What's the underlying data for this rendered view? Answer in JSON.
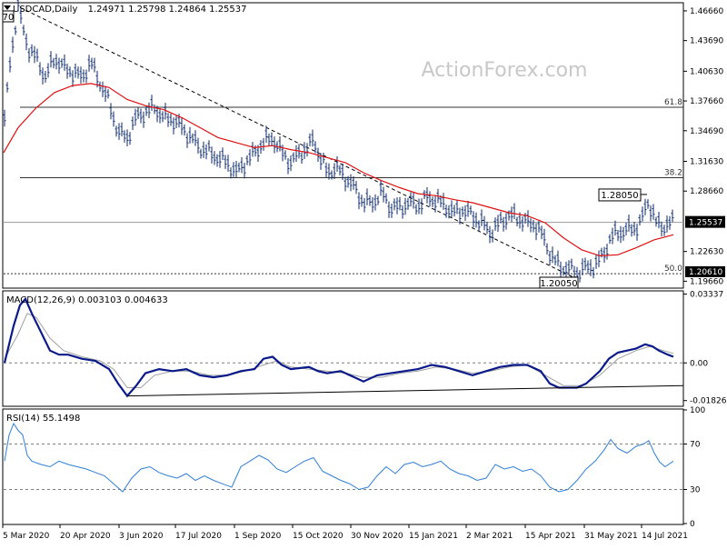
{
  "header": {
    "symbol": "USDCAD,Daily",
    "ohlc": "1.24971 1.25798 1.24864 1.25537"
  },
  "watermark": "ActionForex.com",
  "colors": {
    "price": "#0b2a6e",
    "ma": "#e01010",
    "macd": "#0a1a8a",
    "macd_signal": "#a0a0a0",
    "rsi": "#2f7fd6",
    "grid": "#7f7f7f",
    "fib": "#333333"
  },
  "chart_data": [
    {
      "type": "candlestick",
      "panel": "price",
      "ylim": [
        1.1906,
        1.4738
      ],
      "y_ticks": [
        1.4666,
        1.4369,
        1.4063,
        1.3766,
        1.3469,
        1.3163,
        1.2866,
        1.25537,
        1.2263,
        1.2061,
        1.1966
      ],
      "y_tick_labels": [
        "1.46660",
        "1.43690",
        "1.40630",
        "1.37660",
        "1.34690",
        "1.31630",
        "1.28660",
        "1.25537",
        "1.22630",
        "1.20610",
        "1.19660"
      ],
      "current_price": 1.25537,
      "marker_price": 1.2061,
      "x_labels": [
        "5 Mar 2020",
        "20 Apr 2020",
        "3 Jun 2020",
        "17 Jul 2020",
        "1 Sep 2020",
        "15 Oct 2020",
        "30 Nov 2020",
        "15 Jan 2021",
        "2 Mar 2021",
        "15 Apr 2021",
        "31 May 2021",
        "14 Jul 2021"
      ],
      "price_path": [
        [
          0,
          1.34
        ],
        [
          6,
          1.36
        ],
        [
          10,
          1.41
        ],
        [
          15,
          1.44
        ],
        [
          20,
          1.47
        ],
        [
          25,
          1.45
        ],
        [
          33,
          1.425
        ],
        [
          40,
          1.42
        ],
        [
          50,
          1.4
        ],
        [
          60,
          1.42
        ],
        [
          70,
          1.41
        ],
        [
          80,
          1.405
        ],
        [
          90,
          1.4
        ],
        [
          100,
          1.415
        ],
        [
          110,
          1.395
        ],
        [
          120,
          1.375
        ],
        [
          130,
          1.345
        ],
        [
          140,
          1.34
        ],
        [
          150,
          1.36
        ],
        [
          160,
          1.365
        ],
        [
          170,
          1.37
        ],
        [
          180,
          1.36
        ],
        [
          190,
          1.358
        ],
        [
          200,
          1.35
        ],
        [
          210,
          1.34
        ],
        [
          220,
          1.33
        ],
        [
          230,
          1.325
        ],
        [
          240,
          1.32
        ],
        [
          250,
          1.315
        ],
        [
          260,
          1.305
        ],
        [
          270,
          1.315
        ],
        [
          280,
          1.325
        ],
        [
          290,
          1.335
        ],
        [
          300,
          1.34
        ],
        [
          310,
          1.325
        ],
        [
          320,
          1.315
        ],
        [
          330,
          1.325
        ],
        [
          340,
          1.33
        ],
        [
          345,
          1.34
        ],
        [
          350,
          1.325
        ],
        [
          360,
          1.305
        ],
        [
          370,
          1.31
        ],
        [
          380,
          1.3
        ],
        [
          390,
          1.29
        ],
        [
          400,
          1.275
        ],
        [
          410,
          1.275
        ],
        [
          420,
          1.285
        ],
        [
          430,
          1.27
        ],
        [
          440,
          1.27
        ],
        [
          450,
          1.275
        ],
        [
          460,
          1.272
        ],
        [
          470,
          1.28
        ],
        [
          480,
          1.278
        ],
        [
          490,
          1.272
        ],
        [
          500,
          1.265
        ],
        [
          510,
          1.268
        ],
        [
          520,
          1.262
        ],
        [
          530,
          1.255
        ],
        [
          540,
          1.245
        ],
        [
          550,
          1.255
        ],
        [
          560,
          1.262
        ],
        [
          570,
          1.26
        ],
        [
          580,
          1.255
        ],
        [
          590,
          1.252
        ],
        [
          598,
          1.24
        ],
        [
          605,
          1.225
        ],
        [
          612,
          1.215
        ],
        [
          620,
          1.21
        ],
        [
          628,
          1.208
        ],
        [
          635,
          1.205
        ],
        [
          645,
          1.21
        ],
        [
          655,
          1.212
        ],
        [
          665,
          1.225
        ],
        [
          672,
          1.24
        ],
        [
          680,
          1.245
        ],
        [
          690,
          1.248
        ],
        [
          700,
          1.25
        ],
        [
          707,
          1.26
        ],
        [
          712,
          1.275
        ],
        [
          717,
          1.27
        ],
        [
          722,
          1.255
        ],
        [
          728,
          1.25
        ],
        [
          735,
          1.255
        ],
        [
          741,
          1.255
        ]
      ],
      "ma_path": [
        [
          4,
          1.325
        ],
        [
          20,
          1.35
        ],
        [
          40,
          1.37
        ],
        [
          60,
          1.385
        ],
        [
          80,
          1.392
        ],
        [
          100,
          1.394
        ],
        [
          120,
          1.39
        ],
        [
          140,
          1.378
        ],
        [
          160,
          1.372
        ],
        [
          180,
          1.368
        ],
        [
          200,
          1.36
        ],
        [
          220,
          1.35
        ],
        [
          240,
          1.34
        ],
        [
          260,
          1.335
        ],
        [
          280,
          1.33
        ],
        [
          300,
          1.332
        ],
        [
          320,
          1.328
        ],
        [
          340,
          1.325
        ],
        [
          360,
          1.32
        ],
        [
          380,
          1.315
        ],
        [
          400,
          1.305
        ],
        [
          420,
          1.297
        ],
        [
          440,
          1.29
        ],
        [
          460,
          1.284
        ],
        [
          480,
          1.282
        ],
        [
          500,
          1.278
        ],
        [
          520,
          1.275
        ],
        [
          540,
          1.27
        ],
        [
          560,
          1.265
        ],
        [
          580,
          1.262
        ],
        [
          600,
          1.255
        ],
        [
          620,
          1.24
        ],
        [
          640,
          1.228
        ],
        [
          660,
          1.222
        ],
        [
          680,
          1.223
        ],
        [
          700,
          1.23
        ],
        [
          720,
          1.238
        ],
        [
          741,
          1.243
        ]
      ]
    },
    {
      "type": "line",
      "panel": "macd",
      "label": "MACD(12,26,9) 0.003103 0.004633",
      "ylim": [
        -0.0206,
        0.0345
      ],
      "y_ticks": [
        0.03337,
        0.0,
        -0.018262
      ],
      "y_tick_labels": [
        "0.03337",
        "0.00",
        "-0.018262"
      ],
      "macd_path": [
        [
          5,
          0.0
        ],
        [
          15,
          0.018
        ],
        [
          22,
          0.028
        ],
        [
          28,
          0.031
        ],
        [
          35,
          0.024
        ],
        [
          45,
          0.015
        ],
        [
          55,
          0.006
        ],
        [
          65,
          0.004
        ],
        [
          75,
          0.004
        ],
        [
          90,
          0.002
        ],
        [
          105,
          0.001
        ],
        [
          120,
          -0.003
        ],
        [
          130,
          -0.01
        ],
        [
          140,
          -0.016
        ],
        [
          150,
          -0.011
        ],
        [
          160,
          -0.005
        ],
        [
          175,
          -0.003
        ],
        [
          190,
          -0.004
        ],
        [
          205,
          -0.003
        ],
        [
          220,
          -0.006
        ],
        [
          235,
          -0.007
        ],
        [
          250,
          -0.006
        ],
        [
          265,
          -0.004
        ],
        [
          280,
          -0.003
        ],
        [
          290,
          0.002
        ],
        [
          300,
          0.003
        ],
        [
          310,
          -0.001
        ],
        [
          320,
          -0.003
        ],
        [
          340,
          -0.002
        ],
        [
          350,
          -0.004
        ],
        [
          360,
          -0.005
        ],
        [
          375,
          -0.004
        ],
        [
          390,
          -0.007
        ],
        [
          400,
          -0.009
        ],
        [
          415,
          -0.006
        ],
        [
          430,
          -0.005
        ],
        [
          445,
          -0.004
        ],
        [
          460,
          -0.003
        ],
        [
          475,
          -0.001
        ],
        [
          490,
          -0.002
        ],
        [
          505,
          -0.004
        ],
        [
          520,
          -0.006
        ],
        [
          535,
          -0.004
        ],
        [
          550,
          -0.002
        ],
        [
          565,
          -0.001
        ],
        [
          580,
          -0.001
        ],
        [
          595,
          -0.004
        ],
        [
          605,
          -0.01
        ],
        [
          615,
          -0.012
        ],
        [
          625,
          -0.012
        ],
        [
          635,
          -0.012
        ],
        [
          645,
          -0.01
        ],
        [
          660,
          -0.004
        ],
        [
          670,
          0.002
        ],
        [
          680,
          0.005
        ],
        [
          690,
          0.006
        ],
        [
          700,
          0.007
        ],
        [
          710,
          0.009
        ],
        [
          718,
          0.008
        ],
        [
          725,
          0.006
        ],
        [
          735,
          0.004
        ],
        [
          741,
          0.003
        ]
      ],
      "signal_path": [
        [
          5,
          0.002
        ],
        [
          20,
          0.014
        ],
        [
          30,
          0.024
        ],
        [
          40,
          0.022
        ],
        [
          55,
          0.012
        ],
        [
          70,
          0.006
        ],
        [
          90,
          0.003
        ],
        [
          110,
          0.001
        ],
        [
          125,
          -0.003
        ],
        [
          140,
          -0.012
        ],
        [
          155,
          -0.012
        ],
        [
          170,
          -0.006
        ],
        [
          190,
          -0.004
        ],
        [
          210,
          -0.004
        ],
        [
          230,
          -0.006
        ],
        [
          250,
          -0.006
        ],
        [
          270,
          -0.004
        ],
        [
          290,
          -0.001
        ],
        [
          305,
          0.001
        ],
        [
          320,
          -0.002
        ],
        [
          340,
          -0.003
        ],
        [
          360,
          -0.004
        ],
        [
          380,
          -0.005
        ],
        [
          400,
          -0.007
        ],
        [
          420,
          -0.007
        ],
        [
          440,
          -0.005
        ],
        [
          460,
          -0.004
        ],
        [
          480,
          -0.002
        ],
        [
          500,
          -0.003
        ],
        [
          520,
          -0.005
        ],
        [
          540,
          -0.004
        ],
        [
          560,
          -0.002
        ],
        [
          580,
          -0.001
        ],
        [
          600,
          -0.006
        ],
        [
          620,
          -0.011
        ],
        [
          640,
          -0.011
        ],
        [
          660,
          -0.006
        ],
        [
          680,
          0.002
        ],
        [
          700,
          0.006
        ],
        [
          715,
          0.008
        ],
        [
          730,
          0.006
        ],
        [
          741,
          0.0046
        ]
      ],
      "trendline": [
        [
          140,
          -0.016
        ],
        [
          752,
          -0.011
        ]
      ]
    },
    {
      "type": "line",
      "panel": "rsi",
      "label": "RSI(14) 55.1498",
      "ylim": [
        0,
        100
      ],
      "y_ticks": [
        100,
        70,
        30,
        0
      ],
      "y_tick_labels": [
        "100",
        "70",
        "30",
        "0"
      ],
      "levels": [
        70,
        30
      ],
      "rsi_path": [
        [
          5,
          55
        ],
        [
          10,
          78
        ],
        [
          15,
          88
        ],
        [
          20,
          82
        ],
        [
          25,
          78
        ],
        [
          30,
          60
        ],
        [
          35,
          55
        ],
        [
          45,
          52
        ],
        [
          55,
          50
        ],
        [
          65,
          55
        ],
        [
          75,
          52
        ],
        [
          85,
          50
        ],
        [
          95,
          48
        ],
        [
          105,
          45
        ],
        [
          115,
          42
        ],
        [
          125,
          35
        ],
        [
          135,
          28
        ],
        [
          145,
          40
        ],
        [
          155,
          48
        ],
        [
          165,
          50
        ],
        [
          175,
          45
        ],
        [
          185,
          42
        ],
        [
          195,
          40
        ],
        [
          205,
          44
        ],
        [
          215,
          38
        ],
        [
          225,
          42
        ],
        [
          235,
          38
        ],
        [
          245,
          35
        ],
        [
          255,
          32
        ],
        [
          265,
          50
        ],
        [
          275,
          55
        ],
        [
          285,
          60
        ],
        [
          295,
          56
        ],
        [
          305,
          48
        ],
        [
          315,
          45
        ],
        [
          325,
          50
        ],
        [
          335,
          55
        ],
        [
          345,
          58
        ],
        [
          355,
          46
        ],
        [
          365,
          42
        ],
        [
          375,
          38
        ],
        [
          385,
          35
        ],
        [
          395,
          30
        ],
        [
          405,
          32
        ],
        [
          415,
          42
        ],
        [
          425,
          50
        ],
        [
          435,
          44
        ],
        [
          445,
          52
        ],
        [
          455,
          54
        ],
        [
          465,
          50
        ],
        [
          475,
          52
        ],
        [
          485,
          55
        ],
        [
          495,
          48
        ],
        [
          505,
          44
        ],
        [
          515,
          42
        ],
        [
          525,
          38
        ],
        [
          535,
          40
        ],
        [
          545,
          52
        ],
        [
          555,
          48
        ],
        [
          565,
          50
        ],
        [
          575,
          46
        ],
        [
          585,
          48
        ],
        [
          595,
          42
        ],
        [
          605,
          32
        ],
        [
          615,
          28
        ],
        [
          625,
          30
        ],
        [
          635,
          38
        ],
        [
          645,
          48
        ],
        [
          655,
          55
        ],
        [
          665,
          65
        ],
        [
          672,
          74
        ],
        [
          680,
          66
        ],
        [
          690,
          62
        ],
        [
          700,
          68
        ],
        [
          708,
          70
        ],
        [
          714,
          73
        ],
        [
          720,
          62
        ],
        [
          726,
          54
        ],
        [
          732,
          50
        ],
        [
          741,
          55
        ]
      ]
    }
  ],
  "annotations": {
    "high_label": "1.28050",
    "low_label": "1.20050",
    "start_label": "70",
    "fib_levels": [
      {
        "label": "61.8",
        "price": 1.37037
      },
      {
        "label": "38.2",
        "price": 1.29995
      },
      {
        "label": "50.0",
        "price": 1.2041
      }
    ]
  }
}
